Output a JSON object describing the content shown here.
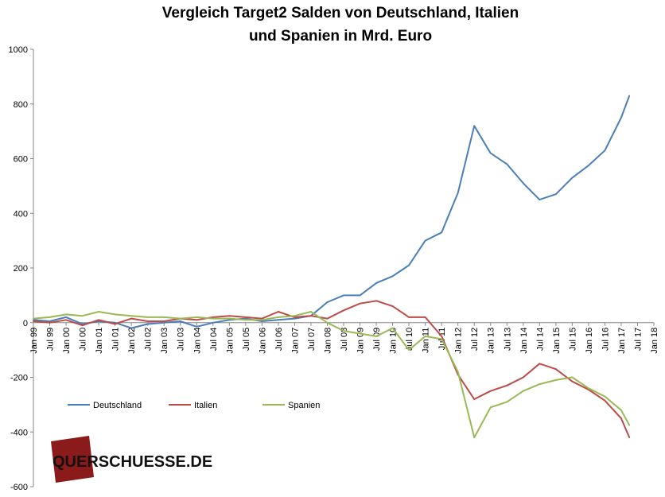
{
  "chart_data": {
    "type": "line",
    "title_lines": [
      "Vergleich Target2 Salden von Deutschland, Italien",
      "und Spanien in Mrd. Euro"
    ],
    "ylim": [
      -600,
      1000
    ],
    "yticks": [
      -600,
      -400,
      -200,
      0,
      200,
      400,
      600,
      800,
      1000
    ],
    "xticks": [
      "Jan 99",
      "Jul 99",
      "Jan 00",
      "Jul 00",
      "Jan 01",
      "Jul 01",
      "Jan 02",
      "Jul 02",
      "Jan 03",
      "Jul 03",
      "Jan 04",
      "Jul 04",
      "Jan 05",
      "Jul 05",
      "Jan 06",
      "Jul 06",
      "Jan 07",
      "Jul 07",
      "Jan 08",
      "Jul 08",
      "Jan 09",
      "Jul 09",
      "Jan 10",
      "Jul 10",
      "Jan 11",
      "Jul 11",
      "Jan 12",
      "Jul 12",
      "Jan 13",
      "Jul 13",
      "Jan 14",
      "Jul 14",
      "Jan 15",
      "Jul 15",
      "Jan 16",
      "Jul 16",
      "Jan 17",
      "Jul 17",
      "Jan 18"
    ],
    "grid": false,
    "legend_position": "lower-left",
    "series": [
      {
        "name": "Deutschland",
        "color": "#4a7ebb",
        "points": [
          [
            "Jan 99",
            10
          ],
          [
            "Jul 99",
            5
          ],
          [
            "Jan 00",
            20
          ],
          [
            "Jul 00",
            -5
          ],
          [
            "Jan 01",
            5
          ],
          [
            "Jul 01",
            0
          ],
          [
            "Jan 02",
            -20
          ],
          [
            "Jul 02",
            -5
          ],
          [
            "Jan 03",
            0
          ],
          [
            "Jul 03",
            5
          ],
          [
            "Jan 04",
            -15
          ],
          [
            "Jul 04",
            0
          ],
          [
            "Jan 05",
            10
          ],
          [
            "Jul 05",
            15
          ],
          [
            "Jan 06",
            5
          ],
          [
            "Jul 06",
            10
          ],
          [
            "Jan 07",
            15
          ],
          [
            "Jul 07",
            25
          ],
          [
            "Jan 08",
            75
          ],
          [
            "Jul 08",
            100
          ],
          [
            "Jan 09",
            100
          ],
          [
            "Jul 09",
            145
          ],
          [
            "Jan 10",
            170
          ],
          [
            "Jul 10",
            210
          ],
          [
            "Jan 11",
            300
          ],
          [
            "Jul 11",
            330
          ],
          [
            "Jan 12",
            475
          ],
          [
            "Jul 12",
            720
          ],
          [
            "Jan 13",
            620
          ],
          [
            "Jul 13",
            580
          ],
          [
            "Jan 14",
            510
          ],
          [
            "Jul 14",
            450
          ],
          [
            "Jan 15",
            470
          ],
          [
            "Jul 15",
            530
          ],
          [
            "Jan 16",
            575
          ],
          [
            "Jul 16",
            630
          ],
          [
            "Jan 17",
            750
          ],
          [
            "Apr 17",
            830
          ]
        ]
      },
      {
        "name": "Italien",
        "color": "#be4b48",
        "points": [
          [
            "Jan 99",
            5
          ],
          [
            "Jul 99",
            0
          ],
          [
            "Jan 00",
            10
          ],
          [
            "Jul 00",
            -10
          ],
          [
            "Jan 01",
            10
          ],
          [
            "Jul 01",
            -5
          ],
          [
            "Jan 02",
            15
          ],
          [
            "Jul 02",
            5
          ],
          [
            "Jan 03",
            5
          ],
          [
            "Jul 03",
            15
          ],
          [
            "Jan 04",
            10
          ],
          [
            "Jul 04",
            20
          ],
          [
            "Jan 05",
            25
          ],
          [
            "Jul 05",
            20
          ],
          [
            "Jan 06",
            15
          ],
          [
            "Jul 06",
            40
          ],
          [
            "Jan 07",
            20
          ],
          [
            "Jul 07",
            25
          ],
          [
            "Jan 08",
            15
          ],
          [
            "Jul 08",
            45
          ],
          [
            "Jan 09",
            70
          ],
          [
            "Jul 09",
            80
          ],
          [
            "Jan 10",
            60
          ],
          [
            "Jul 10",
            20
          ],
          [
            "Jan 11",
            20
          ],
          [
            "Jul 11",
            -50
          ],
          [
            "Jan 12",
            -190
          ],
          [
            "Jul 12",
            -280
          ],
          [
            "Jan 13",
            -250
          ],
          [
            "Jul 13",
            -230
          ],
          [
            "Jan 14",
            -200
          ],
          [
            "Jul 14",
            -150
          ],
          [
            "Jan 15",
            -170
          ],
          [
            "Jul 15",
            -215
          ],
          [
            "Jan 16",
            -245
          ],
          [
            "Jul 16",
            -285
          ],
          [
            "Jan 17",
            -350
          ],
          [
            "Apr 17",
            -420
          ]
        ]
      },
      {
        "name": "Spanien",
        "color": "#98b954",
        "points": [
          [
            "Jan 99",
            15
          ],
          [
            "Jul 99",
            20
          ],
          [
            "Jan 00",
            30
          ],
          [
            "Jul 00",
            25
          ],
          [
            "Jan 01",
            40
          ],
          [
            "Jul 01",
            30
          ],
          [
            "Jan 02",
            25
          ],
          [
            "Jul 02",
            20
          ],
          [
            "Jan 03",
            20
          ],
          [
            "Jul 03",
            15
          ],
          [
            "Jan 04",
            20
          ],
          [
            "Jul 04",
            15
          ],
          [
            "Jan 05",
            15
          ],
          [
            "Jul 05",
            10
          ],
          [
            "Jan 06",
            10
          ],
          [
            "Jul 06",
            20
          ],
          [
            "Jan 07",
            25
          ],
          [
            "Jul 07",
            40
          ],
          [
            "Jan 08",
            0
          ],
          [
            "Jul 08",
            -30
          ],
          [
            "Jan 09",
            -40
          ],
          [
            "Jul 09",
            -50
          ],
          [
            "Jan 10",
            -20
          ],
          [
            "Jul 10",
            -100
          ],
          [
            "Jan 11",
            -50
          ],
          [
            "Jul 11",
            -60
          ],
          [
            "Jan 12",
            -180
          ],
          [
            "Jul 12",
            -420
          ],
          [
            "Jan 13",
            -310
          ],
          [
            "Jul 13",
            -290
          ],
          [
            "Jan 14",
            -250
          ],
          [
            "Jul 14",
            -225
          ],
          [
            "Jan 15",
            -210
          ],
          [
            "Jul 15",
            -200
          ],
          [
            "Jan 16",
            -240
          ],
          [
            "Jul 16",
            -270
          ],
          [
            "Jan 17",
            -320
          ],
          [
            "Apr 17",
            -375
          ]
        ]
      }
    ]
  },
  "logo": {
    "text": "QUERSCHUESSE.DE",
    "box_color": "#8b1a1a"
  }
}
